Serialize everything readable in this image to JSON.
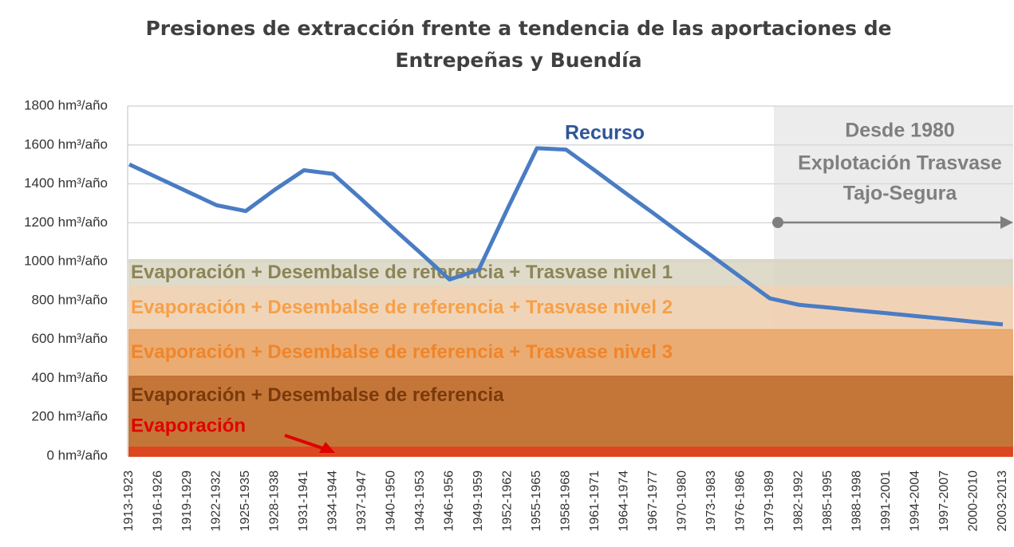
{
  "chart_data": {
    "type": "line",
    "title": "Presiones de extracción frente a tendencia de las aportaciones de Entrepeñas y Buendía",
    "categories": [
      "1913-1923",
      "1916-1926",
      "1919-1929",
      "1922-1932",
      "1925-1935",
      "1928-1938",
      "1931-1941",
      "1934-1944",
      "1937-1947",
      "1940-1950",
      "1943-1953",
      "1946-1956",
      "1949-1959",
      "1952-1962",
      "1955-1965",
      "1958-1968",
      "1961-1971",
      "1964-1974",
      "1967-1977",
      "1970-1980",
      "1973-1983",
      "1976-1986",
      "1979-1989",
      "1982-1992",
      "1985-1995",
      "1988-1998",
      "1991-2001",
      "1994-2004",
      "1997-2007",
      "2000-2010",
      "2003-2013"
    ],
    "series": [
      {
        "name": "Recurso",
        "color": "#4a7cc4",
        "values": [
          1500,
          1430,
          1360,
          1290,
          1260,
          1370,
          1470,
          1451,
          1317,
          1179,
          1045,
          908,
          958,
          1275,
          1583,
          1576,
          1468,
          1357,
          1249,
          1138,
          1030,
          920,
          811,
          778,
          764,
          749,
          735,
          720,
          706,
          691,
          677
        ]
      }
    ],
    "bands": [
      {
        "name": "Evaporación + Desembalse de referencia + Trasvase nivel 1",
        "value": 1010,
        "color": "#d8d5c2",
        "text_color": "#8b8558"
      },
      {
        "name": "Evaporación + Desembalse de referencia + Trasvase nivel 2",
        "value": 870,
        "color": "#f3d2b4",
        "text_color": "#f7a048"
      },
      {
        "name": "Evaporación + Desembalse de referencia + Trasvase nivel 3",
        "value": 650,
        "color": "#e9a466",
        "text_color": "#f0852a"
      },
      {
        "name": "Evaporación + Desembalse de referencia",
        "value": 410,
        "color": "#bd6c2e",
        "text_color": "#7a3a0c"
      },
      {
        "name": "Evaporación",
        "value": 45,
        "color": "#e2401c",
        "text_color": "#e00000"
      }
    ],
    "annotation": [
      "Desde 1980",
      "Explotación Trasvase",
      "Tajo-Segura"
    ],
    "ylim": [
      0,
      1800
    ],
    "yticks": [
      {
        "value": 0,
        "label": "0 hm³/año"
      },
      {
        "value": 200,
        "label": "200 hm³/año"
      },
      {
        "value": 400,
        "label": "400 hm³/año"
      },
      {
        "value": 600,
        "label": "600 hm³/año"
      },
      {
        "value": 800,
        "label": "800 hm³/año"
      },
      {
        "value": 1000,
        "label": "1000 hm³/año"
      },
      {
        "value": 1200,
        "label": "1200 hm³/año"
      },
      {
        "value": 1400,
        "label": "1400 hm³/año"
      },
      {
        "value": 1600,
        "label": "1600 hm³/año"
      },
      {
        "value": 1800,
        "label": "1800 hm³/año"
      }
    ],
    "grid": true
  }
}
